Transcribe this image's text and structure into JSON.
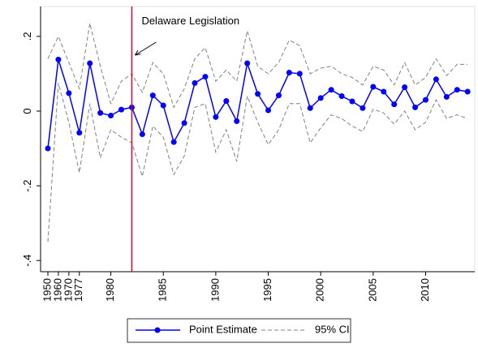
{
  "chart_data": {
    "type": "line",
    "annotation": "Delaware Legislation",
    "annotation_year": 1982,
    "annotation_color": "#c8102e",
    "categories": [
      "1950",
      "1960",
      "1970",
      "1977",
      null,
      null,
      "1980",
      null,
      null,
      null,
      null,
      "1985",
      null,
      null,
      null,
      null,
      "1990",
      null,
      null,
      null,
      null,
      "1995",
      null,
      null,
      null,
      null,
      "2000",
      null,
      null,
      null,
      null,
      "2005",
      null,
      null,
      null,
      null,
      "2010",
      null,
      null,
      null,
      null
    ],
    "series": [
      {
        "name": "Point Estimate",
        "color": "#0000ff",
        "values": [
          -0.1,
          0.138,
          0.048,
          -0.058,
          0.128,
          -0.005,
          -0.012,
          0.004,
          0.01,
          -0.062,
          0.042,
          0.015,
          -0.083,
          -0.032,
          0.075,
          0.092,
          -0.016,
          0.027,
          -0.027,
          0.128,
          0.046,
          0.002,
          0.042,
          0.103,
          0.1,
          0.008,
          0.035,
          0.057,
          0.04,
          0.026,
          0.008,
          0.065,
          0.052,
          0.018,
          0.064,
          0.01,
          0.03,
          0.085,
          0.038,
          0.057,
          0.052
        ]
      },
      {
        "name": "95% CI",
        "color": "#808080",
        "upper": [
          0.14,
          0.2,
          0.13,
          0.06,
          0.235,
          0.12,
          0.02,
          0.08,
          0.1,
          0.05,
          0.13,
          0.1,
          0.01,
          0.06,
          0.14,
          0.17,
          0.08,
          0.11,
          0.08,
          0.215,
          0.12,
          0.1,
          0.13,
          0.19,
          0.175,
          0.1,
          0.115,
          0.12,
          0.1,
          0.09,
          0.07,
          0.12,
          0.11,
          0.07,
          0.13,
          0.07,
          0.09,
          0.14,
          0.095,
          0.125,
          0.125
        ],
        "lower": [
          -0.35,
          0.075,
          -0.03,
          -0.165,
          0.02,
          -0.125,
          -0.05,
          -0.07,
          -0.085,
          -0.175,
          -0.04,
          -0.07,
          -0.17,
          -0.12,
          0.01,
          0.02,
          -0.11,
          -0.05,
          -0.135,
          0.04,
          -0.03,
          -0.09,
          -0.05,
          0.02,
          0.02,
          -0.085,
          -0.045,
          -0.01,
          -0.02,
          -0.04,
          -0.055,
          0.005,
          -0.005,
          -0.035,
          0.0,
          -0.05,
          -0.03,
          0.03,
          -0.02,
          -0.01,
          -0.02
        ]
      }
    ],
    "ylim": [
      -0.43,
      0.28
    ],
    "yticks": [
      {
        "value": 0.2,
        "label": ".2"
      },
      0,
      {
        "value": -0.2,
        "label": "-.2"
      },
      {
        "value": -0.4,
        "label": "-.4"
      }
    ],
    "grid": false
  }
}
